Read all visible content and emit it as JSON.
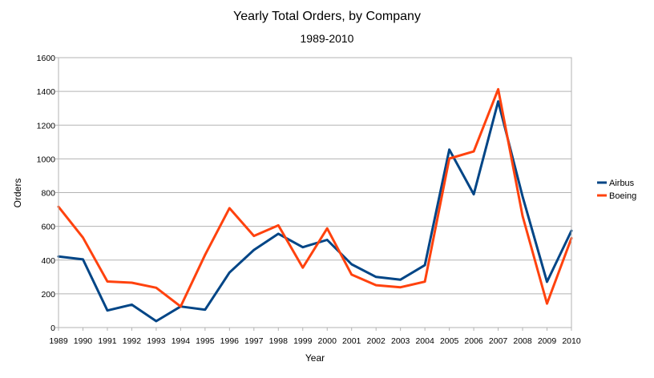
{
  "chart_data": {
    "type": "line",
    "title": "Yearly Total Orders, by Company",
    "subtitle": "1989-2010",
    "xlabel": "Year",
    "ylabel": "Orders",
    "ylim": [
      0,
      1600
    ],
    "yticks": [
      0,
      200,
      400,
      600,
      800,
      1000,
      1200,
      1400,
      1600
    ],
    "grid": true,
    "legend_position": "right",
    "categories": [
      "1989",
      "1990",
      "1991",
      "1992",
      "1993",
      "1994",
      "1995",
      "1996",
      "1997",
      "1998",
      "1999",
      "2000",
      "2001",
      "2002",
      "2003",
      "2004",
      "2005",
      "2006",
      "2007",
      "2008",
      "2009",
      "2010"
    ],
    "series": [
      {
        "name": "Airbus",
        "color": "#004586",
        "values": [
          421,
          404,
          101,
          136,
          38,
          125,
          106,
          326,
          460,
          556,
          476,
          520,
          375,
          300,
          284,
          370,
          1055,
          790,
          1341,
          777,
          271,
          574
        ]
      },
      {
        "name": "Boeing",
        "color": "#ff420e",
        "values": [
          716,
          533,
          273,
          266,
          236,
          125,
          431,
          708,
          543,
          606,
          355,
          588,
          314,
          251,
          239,
          272,
          1002,
          1044,
          1413,
          662,
          142,
          530
        ]
      }
    ]
  }
}
